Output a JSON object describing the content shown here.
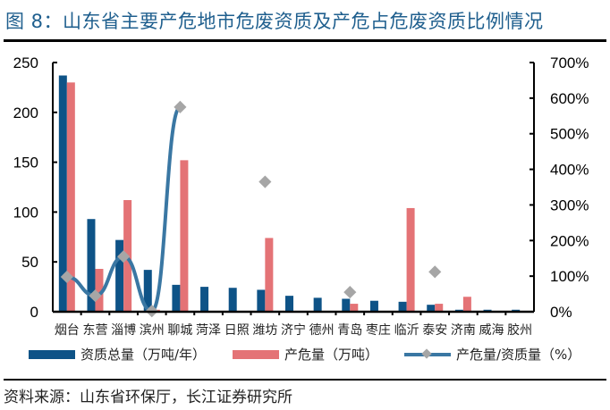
{
  "title": "图 8：山东省主要产危地市危废资质及产危占危废资质比例情况",
  "source": "资料来源：山东省环保厅，长江证券研究所",
  "colors": {
    "capacity": "#0e5387",
    "generation": "#e47376",
    "ratio_line": "#3a77a3",
    "ratio_marker": "#a6a6a6",
    "title": "#1f5f8e"
  },
  "legend": [
    {
      "label": "资质总量（万吨/年）",
      "type": "bar"
    },
    {
      "label": "产危量（万吨）",
      "type": "bar"
    },
    {
      "label": "产危量/资质量（%）",
      "type": "line"
    }
  ],
  "chart_data": {
    "type": "bar",
    "title": "山东省主要产危地市危废资质及产危占危废资质比例情况",
    "xlabel": "",
    "ylabel": "",
    "y2label": "",
    "categories": [
      "烟台",
      "东营",
      "淄博",
      "滨州",
      "聊城",
      "菏泽",
      "日照",
      "潍坊",
      "济宁",
      "德州",
      "青岛",
      "枣庄",
      "临沂",
      "泰安",
      "济南",
      "威海",
      "胶州"
    ],
    "series": [
      {
        "name": "资质总量（万吨/年）",
        "type": "bar",
        "axis": "left",
        "values": [
          237,
          93,
          72,
          42,
          27,
          25,
          24,
          22,
          16,
          14,
          13,
          11,
          10,
          7,
          2,
          2,
          2
        ]
      },
      {
        "name": "产危量（万吨）",
        "type": "bar",
        "axis": "left",
        "values": [
          230,
          43,
          112,
          2,
          152,
          0,
          0,
          74,
          0,
          0,
          8,
          0,
          104,
          8,
          15,
          0,
          0
        ]
      },
      {
        "name": "产危量/资质量（%）",
        "type": "line",
        "axis": "right",
        "values": [
          98,
          45,
          155,
          2,
          575,
          null,
          null,
          365,
          null,
          null,
          55,
          null,
          null,
          112,
          null,
          null,
          null
        ]
      }
    ],
    "ylim": [
      0,
      250
    ],
    "yticks": [
      0,
      50,
      100,
      150,
      200,
      250
    ],
    "y2lim": [
      0,
      700
    ],
    "y2ticks": [
      "0%",
      "100%",
      "200%",
      "300%",
      "400%",
      "500%",
      "600%",
      "700%"
    ],
    "grid": false,
    "legend_position": "bottom"
  }
}
